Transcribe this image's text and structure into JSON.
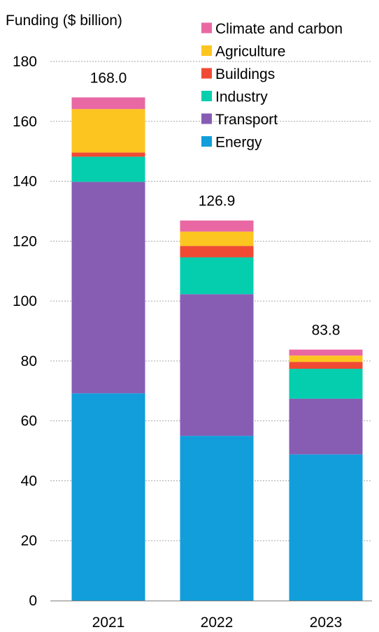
{
  "chart_data": {
    "type": "bar",
    "stacked": true,
    "title": "",
    "ylabel": "Funding ($ billion)",
    "xlabel": "",
    "ylim": [
      0,
      180
    ],
    "yticks": [
      0,
      20,
      40,
      60,
      80,
      100,
      120,
      140,
      160,
      180
    ],
    "categories": [
      "2021",
      "2022",
      "2023"
    ],
    "series": [
      {
        "name": "Energy",
        "color": "#119edb",
        "values": [
          69.2,
          55.0,
          48.8
        ]
      },
      {
        "name": "Transport",
        "color": "#875db4",
        "values": [
          70.6,
          47.3,
          18.6
        ]
      },
      {
        "name": "Industry",
        "color": "#05ceae",
        "values": [
          8.4,
          12.3,
          10.0
        ]
      },
      {
        "name": "Buildings",
        "color": "#f04a34",
        "values": [
          1.4,
          3.8,
          2.3
        ]
      },
      {
        "name": "Agriculture",
        "color": "#fdc51f",
        "values": [
          14.5,
          4.8,
          2.1
        ]
      },
      {
        "name": "Climate and carbon",
        "color": "#e968a3",
        "values": [
          3.9,
          3.7,
          2.0
        ]
      }
    ],
    "totals": [
      "168.0",
      "126.9",
      "83.8"
    ],
    "legend_order": [
      "Climate and carbon",
      "Agriculture",
      "Buildings",
      "Industry",
      "Transport",
      "Energy"
    ],
    "legend_position": "top-right",
    "grid": true
  }
}
